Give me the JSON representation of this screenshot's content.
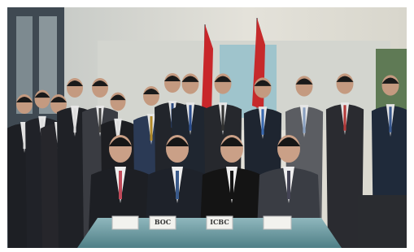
{
  "image": {
    "nameplates": [
      "BOC",
      "ICBC"
    ]
  }
}
